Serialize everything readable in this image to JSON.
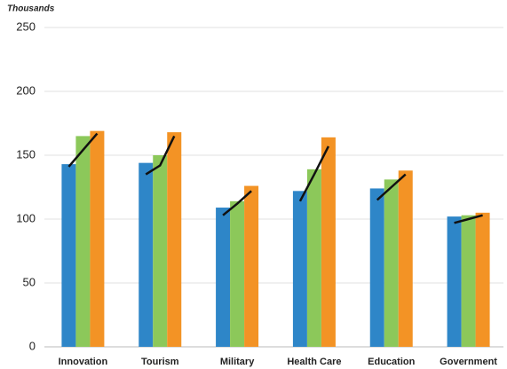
{
  "chart_data": {
    "type": "bar",
    "y_label": "Thousands",
    "categories": [
      "Innovation",
      "Tourism",
      "Military",
      "Health Care",
      "Education",
      "Government"
    ],
    "series": [
      {
        "color": "#2e86c8",
        "values": [
          143,
          144,
          109,
          122,
          124,
          102
        ]
      },
      {
        "color": "#8cc85a",
        "values": [
          165,
          150,
          114,
          139,
          131,
          103
        ]
      },
      {
        "color": "#f39325",
        "values": [
          169,
          168,
          126,
          164,
          138,
          105
        ]
      }
    ],
    "trend_lines": {
      "color": "#111111",
      "values": [
        [
          141,
          154,
          167
        ],
        [
          135,
          142,
          165
        ],
        [
          103,
          112,
          122
        ],
        [
          114,
          135,
          157
        ],
        [
          115,
          125,
          135
        ],
        [
          97,
          100,
          103
        ]
      ]
    },
    "ylim": [
      0,
      250
    ],
    "yticks": [
      0,
      50,
      100,
      150,
      200,
      250
    ],
    "grid": true
  }
}
